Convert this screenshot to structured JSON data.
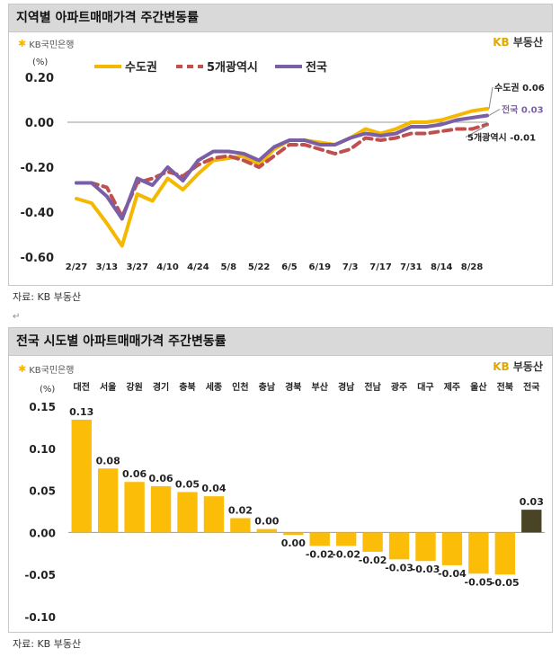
{
  "chart1": {
    "title": "지역별 아파트매매가격 주간변동률",
    "brand_left": "KB국민은행",
    "brand_right_prefix": "KB",
    "brand_right_suffix": "부동산",
    "source": "자료: KB 부동산",
    "unit": "(%)",
    "colors": {
      "수도권": "#f5b800",
      "5개광역시": "#c0504d",
      "전국": "#7b5fa6"
    },
    "end_labels": [
      {
        "series": "수도권",
        "label": "수도권",
        "value_text": "0.06"
      },
      {
        "series": "전국",
        "label": "전국",
        "value_text": "0.03"
      },
      {
        "series": "5개광역시",
        "label": "5개광역시",
        "value_text": "-0.01"
      }
    ]
  },
  "chart2": {
    "title": "전국 시도별 아파트매매가격 주간변동률",
    "brand_left": "KB국민은행",
    "brand_right_prefix": "KB",
    "brand_right_suffix": "부동산",
    "source": "자료: KB 부동산",
    "unit": "(%)",
    "colors": {
      "bar": "#fbbd08",
      "highlight": "#4a4426"
    }
  },
  "chart_data": [
    {
      "type": "line",
      "title": "지역별 아파트매매가격 주간변동률",
      "ylabel": "(%)",
      "ylim": [
        -0.6,
        0.2
      ],
      "yticks": [
        0.2,
        0.0,
        -0.2,
        -0.4,
        -0.6
      ],
      "ytick_labels": [
        "0.20",
        "0.00",
        "-0.20",
        "-0.40",
        "-0.60"
      ],
      "x_labels": [
        "2/27",
        "3/13",
        "3/27",
        "4/10",
        "4/24",
        "5/8",
        "5/22",
        "6/5",
        "6/19",
        "7/3",
        "7/17",
        "7/31",
        "8/14",
        "8/28"
      ],
      "legend": "top",
      "series": [
        {
          "name": "수도권",
          "style": "solid",
          "values": [
            -0.34,
            -0.36,
            -0.45,
            -0.55,
            -0.32,
            -0.35,
            -0.25,
            -0.3,
            -0.23,
            -0.17,
            -0.16,
            -0.15,
            -0.19,
            -0.12,
            -0.08,
            -0.08,
            -0.09,
            -0.1,
            -0.07,
            -0.03,
            -0.05,
            -0.03,
            0.0,
            0.0,
            0.01,
            0.03,
            0.05,
            0.06
          ]
        },
        {
          "name": "5개광역시",
          "style": "dashed",
          "values": [
            -0.27,
            -0.27,
            -0.29,
            -0.42,
            -0.27,
            -0.25,
            -0.22,
            -0.24,
            -0.19,
            -0.16,
            -0.15,
            -0.17,
            -0.2,
            -0.15,
            -0.1,
            -0.1,
            -0.12,
            -0.14,
            -0.12,
            -0.07,
            -0.08,
            -0.07,
            -0.05,
            -0.05,
            -0.04,
            -0.03,
            -0.03,
            -0.01
          ]
        },
        {
          "name": "전국",
          "style": "solid",
          "values": [
            -0.27,
            -0.27,
            -0.33,
            -0.43,
            -0.25,
            -0.28,
            -0.2,
            -0.26,
            -0.17,
            -0.13,
            -0.13,
            -0.14,
            -0.17,
            -0.11,
            -0.08,
            -0.08,
            -0.1,
            -0.1,
            -0.07,
            -0.05,
            -0.06,
            -0.05,
            -0.02,
            -0.02,
            -0.01,
            0.01,
            0.02,
            0.03
          ]
        }
      ]
    },
    {
      "type": "bar",
      "title": "전국 시도별 아파트매매가격 주간변동률",
      "ylabel": "(%)",
      "ylim": [
        -0.1,
        0.15
      ],
      "yticks": [
        0.15,
        0.1,
        0.05,
        0.0,
        -0.05,
        -0.1
      ],
      "ytick_labels": [
        "0.15",
        "0.10",
        "0.05",
        "0.00",
        "-0.05",
        "-0.10"
      ],
      "categories": [
        "대전",
        "서울",
        "강원",
        "경기",
        "충북",
        "세종",
        "인천",
        "충남",
        "경북",
        "부산",
        "경남",
        "전남",
        "광주",
        "대구",
        "제주",
        "울산",
        "전북",
        "전국"
      ],
      "values": [
        0.134,
        0.076,
        0.06,
        0.055,
        0.048,
        0.043,
        0.017,
        0.004,
        -0.003,
        -0.016,
        -0.016,
        -0.023,
        -0.032,
        -0.034,
        -0.039,
        -0.049,
        -0.05,
        0.027
      ],
      "data_labels": [
        "0.13",
        "0.08",
        "0.06",
        "0.06",
        "0.05",
        "0.04",
        "0.02",
        "0.00",
        "0.00",
        "-0.02",
        "-0.02",
        "-0.02",
        "-0.03",
        "-0.03",
        "-0.04",
        "-0.05",
        "-0.05",
        "0.03"
      ]
    }
  ]
}
